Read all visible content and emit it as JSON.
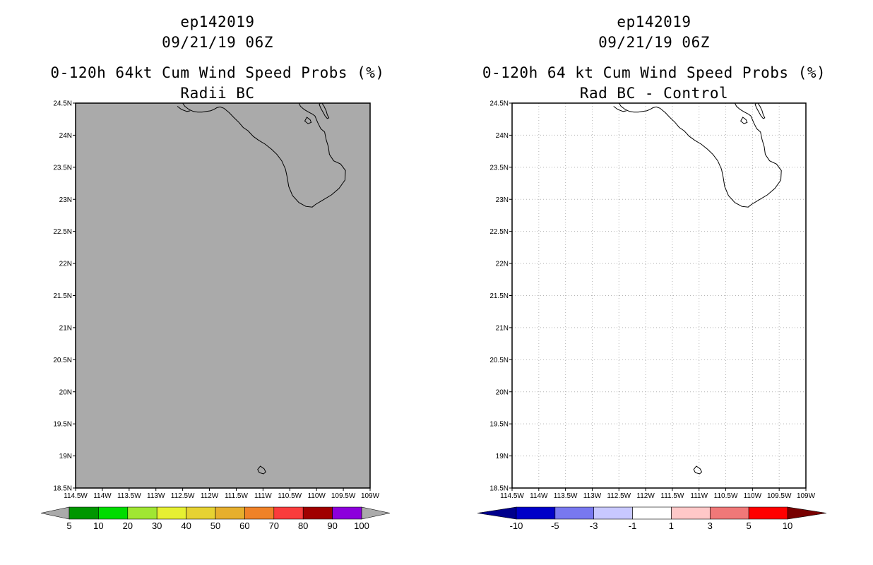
{
  "chart_data": [
    {
      "type": "heatmap",
      "title_lines": [
        "ep142019",
        "09/21/19 06Z",
        "0-120h 64kt Cum Wind Speed Probs (%)",
        "Radii BC"
      ],
      "xlim": [
        -114.5,
        -109
      ],
      "ylim": [
        18.5,
        24.5
      ],
      "xticks": [
        "114.5W",
        "114W",
        "113.5W",
        "113W",
        "112.5W",
        "112W",
        "111.5W",
        "111W",
        "110.5W",
        "110W",
        "109.5W",
        "109W"
      ],
      "yticks": [
        "24.5N",
        "24N",
        "23.5N",
        "23N",
        "22.5N",
        "22N",
        "21.5N",
        "21N",
        "20.5N",
        "20N",
        "19.5N",
        "19N",
        "18.5N"
      ],
      "field_fill": "#aaaaaa",
      "field_value": "below 5% everywhere",
      "grid": false,
      "colorbar": {
        "labels": [
          "5",
          "10",
          "20",
          "30",
          "40",
          "50",
          "60",
          "70",
          "80",
          "90",
          "100"
        ],
        "colors": [
          "#009600",
          "#00dc00",
          "#a0e632",
          "#e6f032",
          "#e6d232",
          "#e6af2d",
          "#f08228",
          "#fa3c3c",
          "#a00000",
          "#8c00dc"
        ],
        "under_color": "#aaaaaa",
        "over_color": "#aaaaaa"
      }
    },
    {
      "type": "heatmap",
      "title_lines": [
        "ep142019",
        "09/21/19 06Z",
        "0-120h 64 kt Cum Wind Speed Probs (%)",
        "Rad BC - Control"
      ],
      "xlim": [
        -114.5,
        -109
      ],
      "ylim": [
        18.5,
        24.5
      ],
      "xticks": [
        "114.5W",
        "114W",
        "113.5W",
        "113W",
        "112.5W",
        "112W",
        "111.5W",
        "111W",
        "110.5W",
        "110W",
        "109.5W",
        "109W"
      ],
      "yticks": [
        "24.5N",
        "24N",
        "23.5N",
        "23N",
        "22.5N",
        "22N",
        "21.5N",
        "21N",
        "20.5N",
        "20N",
        "19.5N",
        "19N",
        "18.5N"
      ],
      "field_fill": "#ffffff",
      "field_value": "between -1 and 1 everywhere",
      "grid": true,
      "colorbar": {
        "labels": [
          "-10",
          "-5",
          "-3",
          "-1",
          "1",
          "3",
          "5",
          "10"
        ],
        "colors": [
          "#0000c8",
          "#7878f0",
          "#c8c8ff",
          "#ffffff",
          "#ffc8c8",
          "#f07878",
          "#ff0000"
        ],
        "under_color": "#00008c",
        "over_color": "#780000"
      }
    }
  ]
}
